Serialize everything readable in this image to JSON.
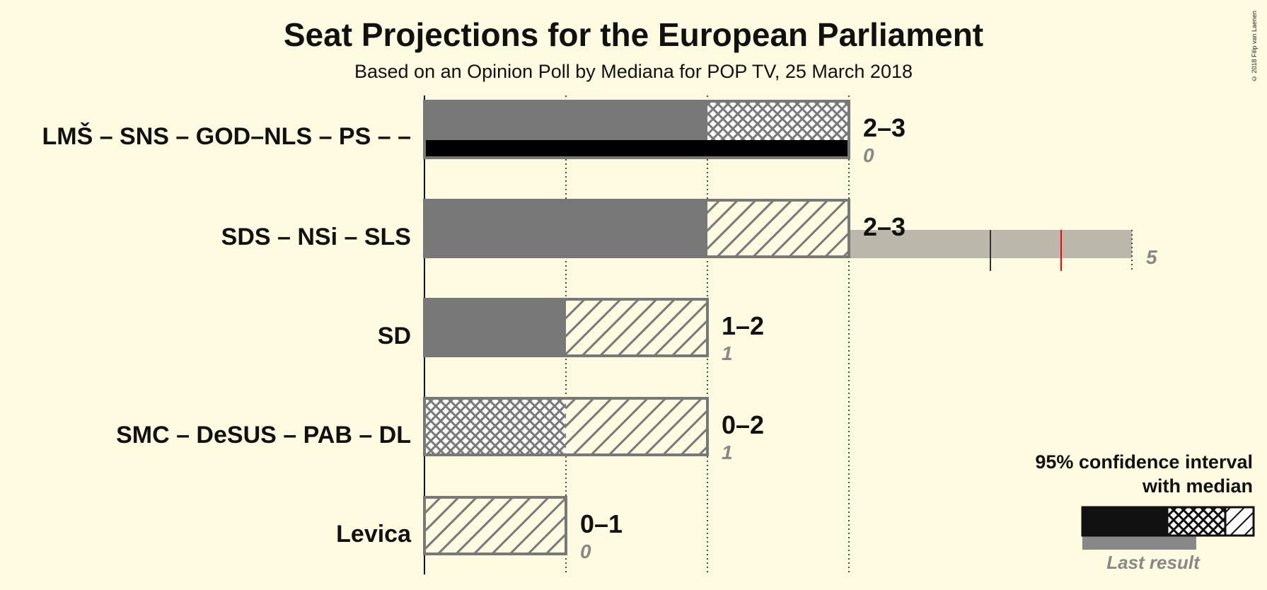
{
  "header": {
    "title": "Seat Projections for the European Parliament",
    "subtitle": "Based on an Opinion Poll by Mediana for POP TV, 25 March 2018",
    "copyright": "© 2018 Filip van Laenen"
  },
  "legend": {
    "ci_label_line1": "95% confidence interval",
    "ci_label_line2": "with median",
    "last_result_label": "Last result"
  },
  "colors": {
    "background": "#fffbe1",
    "median_fill": "#787878",
    "last_result": "#bbb8ab",
    "hatch_stroke": "#787878",
    "majority_line": "#ff0000",
    "black": "#000000"
  },
  "chart_data": {
    "type": "bar",
    "x_range": [
      0,
      5
    ],
    "gridlines": [
      1,
      2,
      3
    ],
    "parties": [
      {
        "name": "LMŠ – SNS – GOD–NLS – PS – –",
        "ci_low": 2,
        "ci_high": 3,
        "median": 2,
        "last": 0,
        "range_label": "2–3",
        "last_label": "0",
        "style": "crosshatch"
      },
      {
        "name": "SDS – NSi – SLS",
        "ci_low": 2,
        "ci_high": 3,
        "median": 2,
        "last": 5,
        "range_label": "2–3",
        "last_label": "5",
        "style": "diagonal",
        "extra_marks": [
          4,
          4.5
        ]
      },
      {
        "name": "SD",
        "ci_low": 1,
        "ci_high": 2,
        "median": 1,
        "last": 1,
        "range_label": "1–2",
        "last_label": "1",
        "style": "diagonal"
      },
      {
        "name": "SMC – DeSUS – PAB – DL",
        "ci_low": 0,
        "ci_high": 2,
        "median": 1,
        "last": 1,
        "range_label": "0–2",
        "last_label": "1",
        "style": "mixed"
      },
      {
        "name": "Levica",
        "ci_low": 0,
        "ci_high": 1,
        "median": 0,
        "last": 0,
        "range_label": "0–1",
        "last_label": "0",
        "style": "diagonal"
      }
    ]
  }
}
